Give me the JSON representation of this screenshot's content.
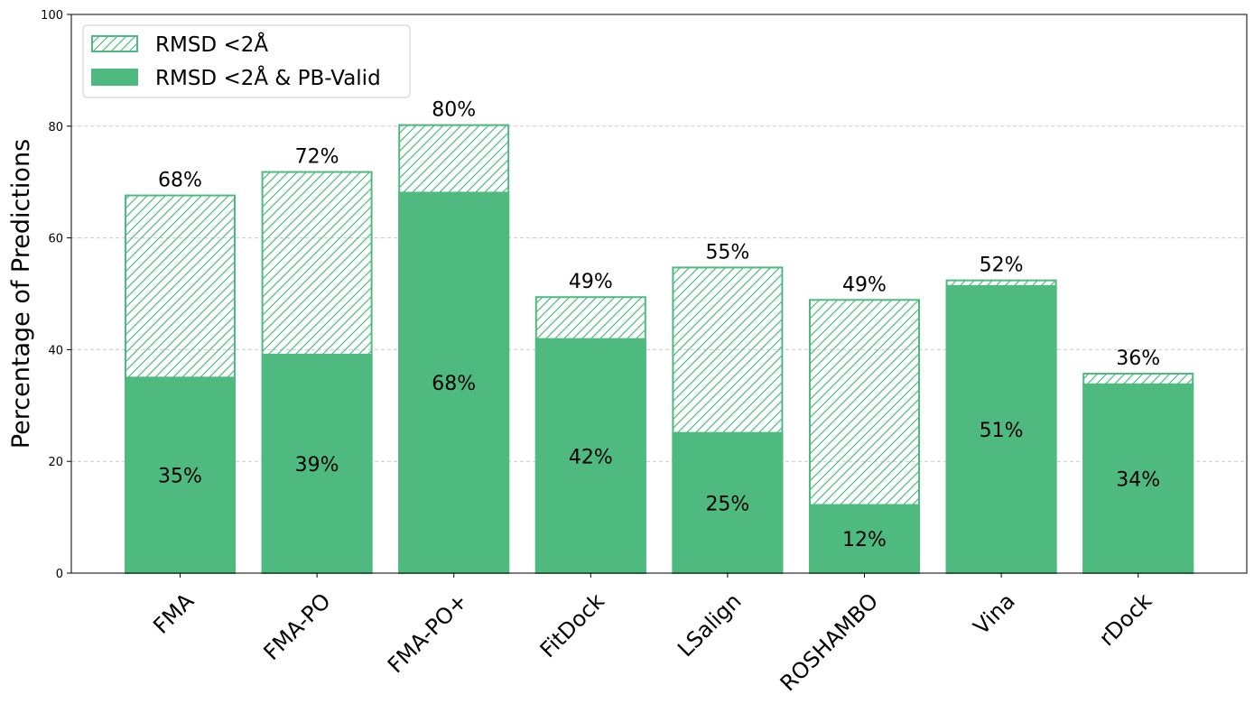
{
  "chart_data": {
    "type": "bar",
    "ylabel": "Percentage of Predictions",
    "xlabel": "",
    "ylim": [
      0,
      100
    ],
    "yticks": [
      0,
      20,
      40,
      60,
      80,
      100
    ],
    "grid": "horizontal dashed",
    "legend_position": "top-left",
    "categories": [
      "FMA",
      "FMA-PO",
      "FMA-PO+",
      "FitDock",
      "LSalign",
      "ROSHAMBO",
      "Vina",
      "rDock"
    ],
    "series": [
      {
        "name": "RMSD <2Å",
        "style": "hatched",
        "values": [
          67.6,
          71.8,
          80.2,
          49.4,
          54.7,
          48.9,
          52.4,
          35.7
        ],
        "labels": [
          "68%",
          "72%",
          "80%",
          "49%",
          "55%",
          "49%",
          "52%",
          "36%"
        ]
      },
      {
        "name": "RMSD <2Å & PB-Valid",
        "style": "solid",
        "values": [
          35.0,
          39.1,
          68.1,
          41.9,
          25.1,
          12.2,
          51.4,
          33.8
        ],
        "labels": [
          "35%",
          "39%",
          "68%",
          "42%",
          "25%",
          "12%",
          "51%",
          "34%"
        ]
      }
    ],
    "colors": {
      "bar": "#4fba7f",
      "grid": "#cccccc",
      "axis": "#000000"
    }
  }
}
